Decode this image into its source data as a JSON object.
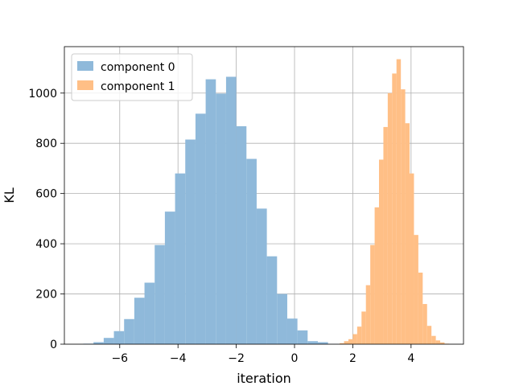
{
  "chart_data": {
    "type": "histogram",
    "title": "",
    "xlabel": "iteration",
    "ylabel": "KL",
    "xlim": [
      -7.9,
      5.8
    ],
    "ylim": [
      0,
      1185
    ],
    "grid": true,
    "legend_position": "top-left",
    "x_ticks": [
      -6,
      -4,
      -2,
      0,
      2,
      4
    ],
    "x_tick_labels": [
      "−6",
      "−4",
      "−2",
      "0",
      "2",
      "4"
    ],
    "y_ticks": [
      0,
      200,
      400,
      600,
      800,
      1000
    ],
    "y_tick_labels": [
      "0",
      "200",
      "400",
      "600",
      "800",
      "1000"
    ],
    "series": [
      {
        "name": "component 0",
        "color": "#8fb9da",
        "bins": [
          [
            -7.25,
            -6.9,
            2
          ],
          [
            -6.9,
            -6.55,
            8
          ],
          [
            -6.55,
            -6.2,
            25
          ],
          [
            -6.2,
            -5.85,
            52
          ],
          [
            -5.85,
            -5.5,
            100
          ],
          [
            -5.5,
            -5.15,
            185
          ],
          [
            -5.15,
            -4.8,
            245
          ],
          [
            -4.8,
            -4.45,
            395
          ],
          [
            -4.45,
            -4.1,
            528
          ],
          [
            -4.1,
            -3.75,
            680
          ],
          [
            -3.75,
            -3.4,
            815
          ],
          [
            -3.4,
            -3.05,
            918
          ],
          [
            -3.05,
            -2.7,
            1055
          ],
          [
            -2.7,
            -2.35,
            998
          ],
          [
            -2.35,
            -2.0,
            1065
          ],
          [
            -2.0,
            -1.65,
            868
          ],
          [
            -1.65,
            -1.3,
            738
          ],
          [
            -1.3,
            -0.95,
            540
          ],
          [
            -0.95,
            -0.6,
            350
          ],
          [
            -0.6,
            -0.25,
            200
          ],
          [
            -0.25,
            0.1,
            102
          ],
          [
            0.1,
            0.45,
            55
          ],
          [
            0.45,
            0.8,
            12
          ],
          [
            0.8,
            1.15,
            8
          ],
          [
            1.15,
            1.5,
            1
          ]
        ]
      },
      {
        "name": "component 1",
        "color": "#ffbf86",
        "bins": [
          [
            1.55,
            1.7,
            4
          ],
          [
            1.7,
            1.85,
            12
          ],
          [
            1.85,
            2.0,
            20
          ],
          [
            2.0,
            2.15,
            40
          ],
          [
            2.15,
            2.3,
            70
          ],
          [
            2.3,
            2.45,
            130
          ],
          [
            2.45,
            2.6,
            235
          ],
          [
            2.6,
            2.75,
            395
          ],
          [
            2.75,
            2.9,
            545
          ],
          [
            2.9,
            3.05,
            735
          ],
          [
            3.05,
            3.2,
            865
          ],
          [
            3.2,
            3.35,
            1000
          ],
          [
            3.35,
            3.5,
            1078
          ],
          [
            3.5,
            3.65,
            1135
          ],
          [
            3.65,
            3.8,
            1015
          ],
          [
            3.8,
            3.95,
            880
          ],
          [
            3.95,
            4.1,
            680
          ],
          [
            4.1,
            4.25,
            435
          ],
          [
            4.25,
            4.4,
            285
          ],
          [
            4.4,
            4.55,
            160
          ],
          [
            4.55,
            4.7,
            73
          ],
          [
            4.7,
            4.85,
            33
          ],
          [
            4.85,
            5.0,
            15
          ],
          [
            5.0,
            5.15,
            7
          ],
          [
            5.15,
            5.3,
            2
          ]
        ]
      }
    ]
  }
}
